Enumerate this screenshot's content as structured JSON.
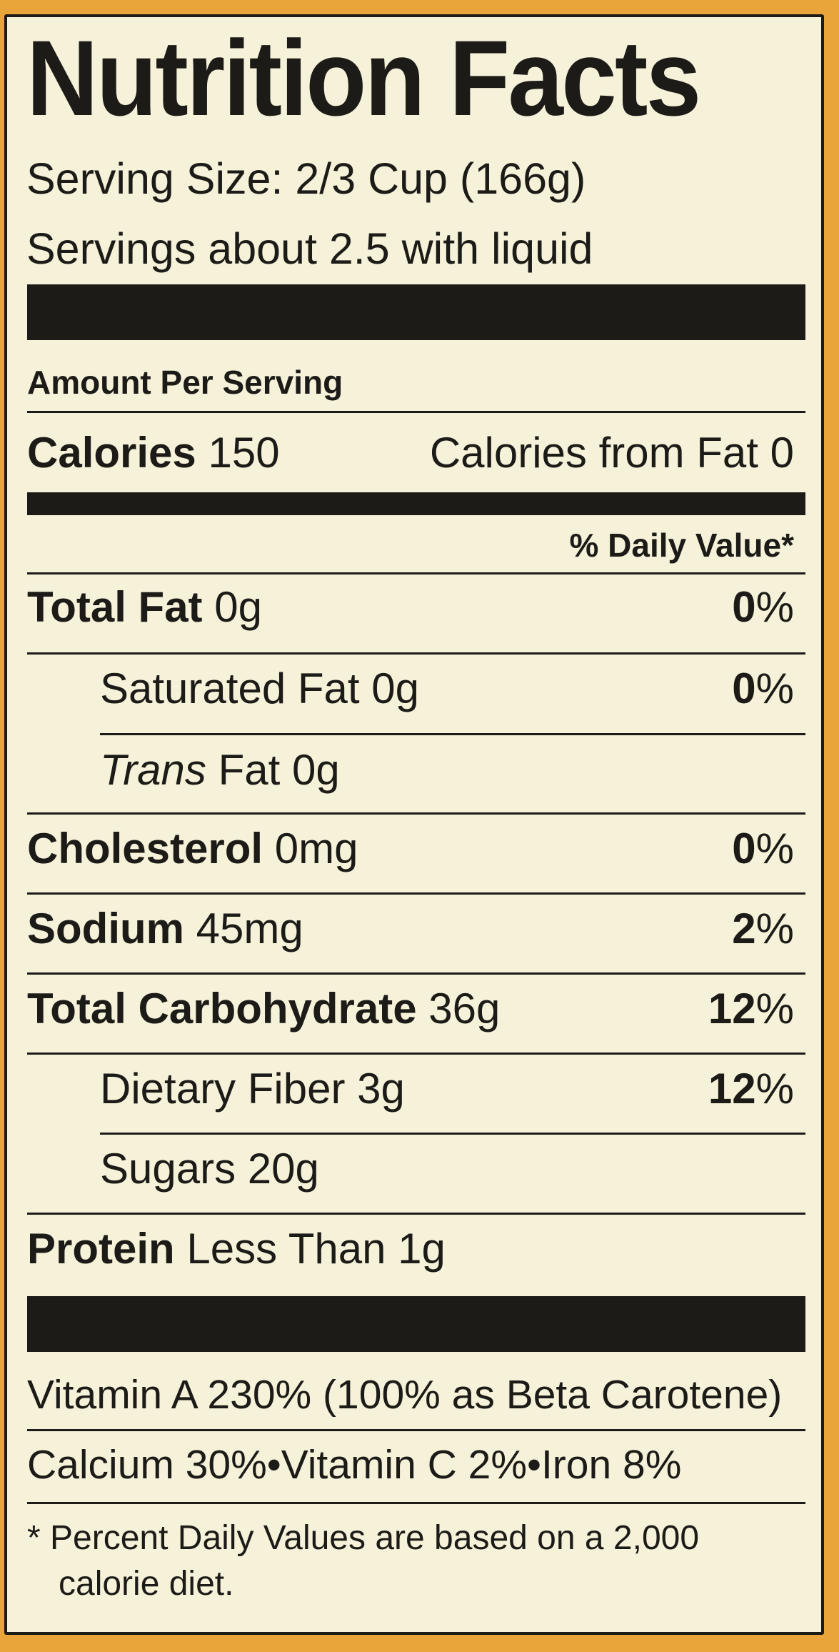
{
  "title": "Nutrition Facts",
  "serving_size": "Serving Size: 2/3 Cup (166g)",
  "servings": "Servings about 2.5 with liquid",
  "amount_per_serving": "Amount Per Serving",
  "calories": {
    "label": "Calories",
    "value": "150",
    "from_fat": "Calories from Fat 0"
  },
  "daily_value_header": "% Daily Value*",
  "nutrients": {
    "total_fat": {
      "label": "Total Fat",
      "amount": "0g",
      "dv": "0",
      "pct": "%"
    },
    "saturated_fat": {
      "label": "Saturated Fat 0g",
      "dv": "0",
      "pct": "%"
    },
    "trans_fat": {
      "label_italic": "Trans",
      "label": "Fat 0g"
    },
    "cholesterol": {
      "label": "Cholesterol",
      "amount": "0mg",
      "dv": "0",
      "pct": "%"
    },
    "sodium": {
      "label": "Sodium",
      "amount": "45mg",
      "dv": "2",
      "pct": "%"
    },
    "total_carbohydrate": {
      "label": "Total Carbohydrate",
      "amount": "36g",
      "dv": "12",
      "pct": "%"
    },
    "dietary_fiber": {
      "label": "Dietary Fiber 3g",
      "dv": "12",
      "pct": "%"
    },
    "sugars": {
      "label": "Sugars 20g"
    },
    "protein": {
      "label": "Protein",
      "amount": "Less Than 1g"
    }
  },
  "vitamins": {
    "line1": "Vitamin A 230% (100% as Beta Carotene)",
    "line2": "Calcium 30%•Vitamin C 2%•Iron 8%"
  },
  "footnote": {
    "line1": "*  Percent Daily Values are based on a 2,000",
    "line2": "calorie diet."
  },
  "colors": {
    "background": "#e9a53a",
    "label": "#f6f2d9",
    "ink": "#1d1b18"
  }
}
